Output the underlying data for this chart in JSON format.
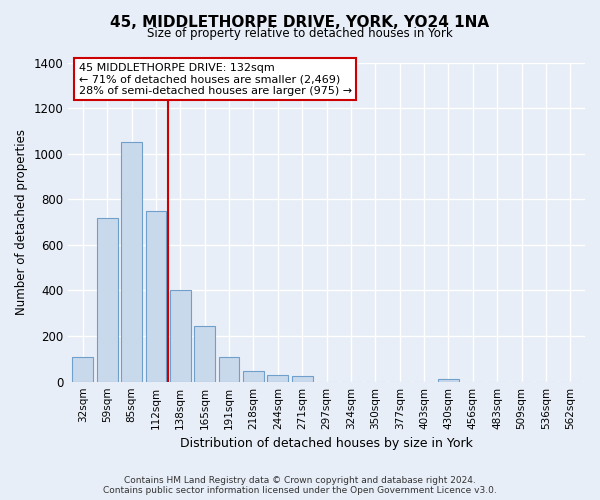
{
  "title": "45, MIDDLETHORPE DRIVE, YORK, YO24 1NA",
  "subtitle": "Size of property relative to detached houses in York",
  "xlabel": "Distribution of detached houses by size in York",
  "ylabel": "Number of detached properties",
  "bar_labels": [
    "32sqm",
    "59sqm",
    "85sqm",
    "112sqm",
    "138sqm",
    "165sqm",
    "191sqm",
    "218sqm",
    "244sqm",
    "271sqm",
    "297sqm",
    "324sqm",
    "350sqm",
    "377sqm",
    "403sqm",
    "430sqm",
    "456sqm",
    "483sqm",
    "509sqm",
    "536sqm",
    "562sqm"
  ],
  "bar_values": [
    107,
    718,
    1050,
    748,
    400,
    243,
    110,
    48,
    28,
    27,
    0,
    0,
    0,
    0,
    0,
    10,
    0,
    0,
    0,
    0,
    0
  ],
  "bar_face_color": "#c9d9ec",
  "bar_edge_color": "#6fa0cc",
  "vline_color": "#cc0000",
  "annotation_title": "45 MIDDLETHORPE DRIVE: 132sqm",
  "annotation_line1": "← 71% of detached houses are smaller (2,469)",
  "annotation_line2": "28% of semi-detached houses are larger (975) →",
  "annotation_box_color": "#ffffff",
  "annotation_box_edgecolor": "#cc0000",
  "ylim": [
    0,
    1400
  ],
  "yticks": [
    0,
    200,
    400,
    600,
    800,
    1000,
    1200,
    1400
  ],
  "footer_line1": "Contains HM Land Registry data © Crown copyright and database right 2024.",
  "footer_line2": "Contains public sector information licensed under the Open Government Licence v3.0.",
  "background_color": "#e8eef7"
}
